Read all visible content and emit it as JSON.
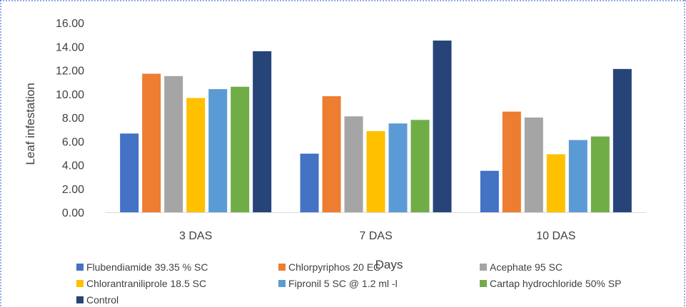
{
  "chart_data": {
    "type": "bar",
    "title": "",
    "xlabel": "Days",
    "ylabel": "Leaf infestation",
    "ylim": [
      0,
      16
    ],
    "yticks": [
      "0.00",
      "2.00",
      "4.00",
      "6.00",
      "8.00",
      "10.00",
      "12.00",
      "14.00",
      "16.00"
    ],
    "grid": false,
    "legend_position": "bottom",
    "categories": [
      "3 DAS",
      "7 DAS",
      "10 DAS"
    ],
    "series": [
      {
        "name": "Flubendiamide 39.35 % SC",
        "color": "#4472C4",
        "values": [
          6.65,
          4.95,
          3.5
        ]
      },
      {
        "name": "Chlorpyriphos 20 EC",
        "color": "#ED7D31",
        "values": [
          11.7,
          9.8,
          8.5
        ]
      },
      {
        "name": "Acephate 95 SC",
        "color": "#A5A5A5",
        "values": [
          11.5,
          8.1,
          8.0
        ]
      },
      {
        "name": "Chlorantraniliprole 18.5 SC",
        "color": "#FFC000",
        "values": [
          9.65,
          6.85,
          4.9
        ]
      },
      {
        "name": "Fipronil 5 SC @ 1.2 ml -l",
        "color": "#5B9BD5",
        "values": [
          10.4,
          7.5,
          6.1
        ]
      },
      {
        "name": "Cartap hydrochloride 50% SP",
        "color": "#70AD47",
        "values": [
          10.6,
          7.8,
          6.4
        ]
      },
      {
        "name": "Control",
        "color": "#264478",
        "values": [
          13.6,
          14.5,
          12.1
        ]
      }
    ]
  }
}
